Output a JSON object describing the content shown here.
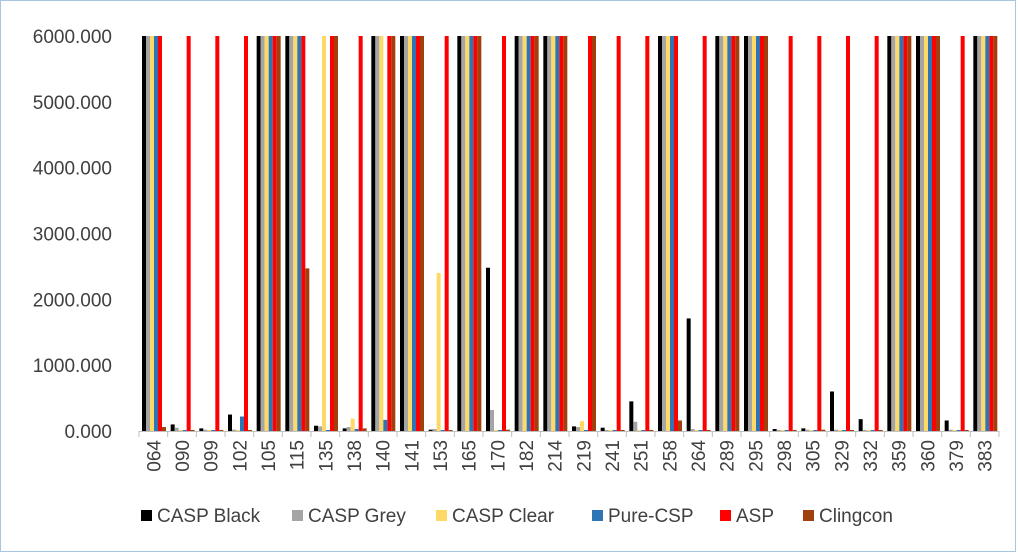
{
  "chart_data": {
    "type": "bar",
    "title": "",
    "xlabel": "",
    "ylabel": "",
    "ylim": [
      0,
      6000
    ],
    "y_ticks": [
      "0.000",
      "1000.000",
      "2000.000",
      "3000.000",
      "4000.000",
      "5000.000",
      "6000.000"
    ],
    "grid": false,
    "legend_position": "bottom",
    "categories": [
      "064",
      "090",
      "099",
      "102",
      "105",
      "115",
      "135",
      "138",
      "140",
      "141",
      "153",
      "165",
      "170",
      "182",
      "214",
      "219",
      "241",
      "251",
      "258",
      "264",
      "289",
      "295",
      "298",
      "305",
      "329",
      "332",
      "359",
      "360",
      "379",
      "383"
    ],
    "series": [
      {
        "name": "CASP Black",
        "color": "#000000",
        "values": [
          6000,
          100,
          40,
          250,
          6000,
          6000,
          80,
          40,
          6000,
          6000,
          20,
          6000,
          2480,
          6000,
          6000,
          70,
          50,
          450,
          6000,
          1710,
          6000,
          6000,
          30,
          40,
          600,
          180,
          6000,
          6000,
          160,
          6000
        ]
      },
      {
        "name": "CASP Grey",
        "color": "#a5a5a5",
        "values": [
          6000,
          50,
          20,
          20,
          6000,
          6000,
          70,
          60,
          6000,
          6000,
          30,
          6000,
          320,
          6000,
          6000,
          60,
          10,
          140,
          6000,
          30,
          6000,
          6000,
          10,
          20,
          20,
          10,
          6000,
          6000,
          20,
          6000
        ]
      },
      {
        "name": "CASP Clear",
        "color": "#ffd966",
        "values": [
          6000,
          10,
          10,
          10,
          6000,
          6000,
          6000,
          190,
          6000,
          6000,
          2400,
          6000,
          10,
          6000,
          6000,
          150,
          10,
          10,
          6000,
          10,
          6000,
          6000,
          10,
          10,
          10,
          10,
          6000,
          6000,
          10,
          6000
        ]
      },
      {
        "name": "Pure-CSP",
        "color": "#2e75b6",
        "values": [
          6000,
          10,
          10,
          220,
          6000,
          6000,
          10,
          30,
          170,
          6000,
          10,
          6000,
          10,
          6000,
          6000,
          10,
          10,
          10,
          6000,
          10,
          6000,
          6000,
          10,
          10,
          10,
          10,
          6000,
          6000,
          10,
          6000
        ]
      },
      {
        "name": "ASP",
        "color": "#ff0000",
        "values": [
          6000,
          6000,
          6000,
          6000,
          6000,
          6000,
          6000,
          6000,
          6000,
          6000,
          6000,
          6000,
          6000,
          6000,
          6000,
          6000,
          6000,
          6000,
          6000,
          6000,
          6000,
          6000,
          6000,
          6000,
          6000,
          6000,
          6000,
          6000,
          6000,
          6000
        ]
      },
      {
        "name": "Clingcon",
        "color": "#a0410d",
        "values": [
          60,
          10,
          10,
          10,
          6000,
          2470,
          6000,
          40,
          6000,
          6000,
          10,
          6000,
          20,
          6000,
          6000,
          6000,
          10,
          10,
          160,
          10,
          6000,
          6000,
          10,
          20,
          10,
          10,
          6000,
          6000,
          10,
          6000
        ]
      }
    ]
  }
}
